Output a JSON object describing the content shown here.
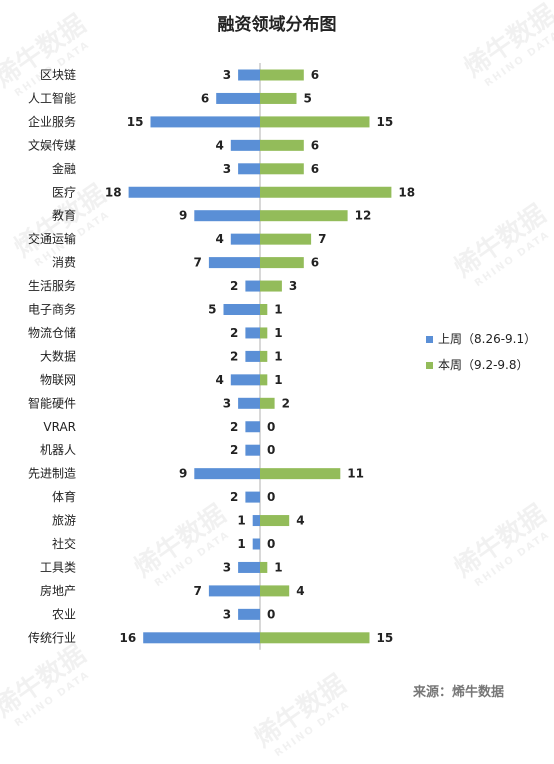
{
  "title": "融资领域分布图",
  "source": "来源：烯牛数据",
  "watermark": {
    "text": "烯牛数据",
    "subtext": "RHINO DATA"
  },
  "colors": {
    "left": "#5a8fd6",
    "right": "#93bc5a",
    "axis": "#b0b0b0"
  },
  "chart_data": {
    "type": "bar",
    "orientation": "horizontal-butterfly",
    "title": "融资领域分布图",
    "categories": [
      "区块链",
      "人工智能",
      "企业服务",
      "文娱传媒",
      "金融",
      "医疗",
      "教育",
      "交通运输",
      "消费",
      "生活服务",
      "电子商务",
      "物流仓储",
      "大数据",
      "物联网",
      "智能硬件",
      "VRAR",
      "机器人",
      "先进制造",
      "体育",
      "旅游",
      "社交",
      "工具类",
      "房地产",
      "农业",
      "传统行业"
    ],
    "series": [
      {
        "name": "上周（8.26-9.1）",
        "values": [
          3,
          6,
          15,
          4,
          3,
          18,
          9,
          4,
          7,
          2,
          5,
          2,
          2,
          4,
          3,
          2,
          2,
          9,
          2,
          1,
          1,
          3,
          7,
          3,
          16
        ]
      },
      {
        "name": "本周（9.2-9.8）",
        "values": [
          6,
          5,
          15,
          6,
          6,
          18,
          12,
          7,
          6,
          3,
          1,
          1,
          1,
          1,
          2,
          0,
          0,
          11,
          0,
          4,
          0,
          1,
          4,
          0,
          15
        ]
      }
    ],
    "legend_position": "right",
    "grid": false
  }
}
